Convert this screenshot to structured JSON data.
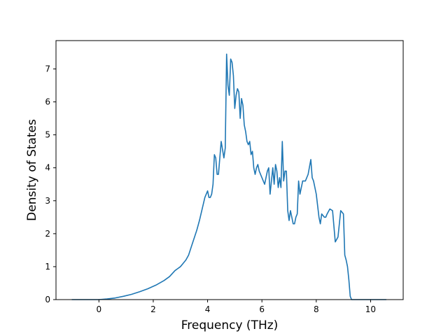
{
  "chart_data": {
    "type": "line",
    "title": "",
    "xlabel": "Frequency (THz)",
    "ylabel": "Density of States",
    "xlim": [
      -1.58,
      11.2
    ],
    "ylim": [
      0,
      7.86
    ],
    "xticks": [
      0,
      2,
      4,
      6,
      8,
      10
    ],
    "yticks": [
      0,
      1,
      2,
      3,
      4,
      5,
      6,
      7
    ],
    "grid": false,
    "legend": "none",
    "series": [
      {
        "color": "#1f77b4",
        "x": [
          -1.0,
          -0.5,
          0.0,
          0.3,
          0.6,
          0.9,
          1.2,
          1.5,
          1.8,
          2.1,
          2.4,
          2.6,
          2.8,
          3.0,
          3.1,
          3.2,
          3.3,
          3.4,
          3.5,
          3.6,
          3.7,
          3.8,
          3.9,
          4.0,
          4.05,
          4.1,
          4.15,
          4.2,
          4.25,
          4.3,
          4.35,
          4.4,
          4.5,
          4.6,
          4.65,
          4.7,
          4.75,
          4.8,
          4.85,
          4.9,
          4.95,
          5.0,
          5.05,
          5.1,
          5.15,
          5.2,
          5.25,
          5.3,
          5.35,
          5.4,
          5.45,
          5.5,
          5.55,
          5.6,
          5.65,
          5.7,
          5.75,
          5.8,
          5.85,
          5.9,
          6.0,
          6.05,
          6.1,
          6.15,
          6.2,
          6.25,
          6.3,
          6.4,
          6.45,
          6.5,
          6.55,
          6.6,
          6.65,
          6.7,
          6.75,
          6.8,
          6.85,
          6.9,
          6.95,
          7.0,
          7.05,
          7.1,
          7.15,
          7.2,
          7.25,
          7.3,
          7.35,
          7.4,
          7.5,
          7.6,
          7.7,
          7.8,
          7.85,
          7.9,
          8.0,
          8.1,
          8.15,
          8.2,
          8.25,
          8.3,
          8.35,
          8.4,
          8.5,
          8.6,
          8.7,
          8.8,
          8.9,
          9.0,
          9.05,
          9.1,
          9.15,
          9.2,
          9.25,
          9.3,
          9.35,
          9.4,
          9.45,
          9.5,
          9.55,
          9.6,
          9.7,
          9.8,
          10.0,
          10.2,
          10.4,
          10.58
        ],
        "y": [
          0.0,
          0.0,
          0.0,
          0.02,
          0.05,
          0.1,
          0.16,
          0.24,
          0.33,
          0.44,
          0.58,
          0.7,
          0.88,
          1.0,
          1.1,
          1.2,
          1.35,
          1.6,
          1.85,
          2.1,
          2.4,
          2.75,
          3.1,
          3.3,
          3.1,
          3.1,
          3.2,
          3.5,
          4.4,
          4.3,
          3.8,
          3.8,
          4.8,
          4.3,
          4.6,
          7.45,
          6.5,
          6.2,
          7.3,
          7.2,
          6.8,
          5.8,
          6.2,
          6.4,
          6.3,
          5.5,
          6.1,
          5.9,
          5.3,
          5.1,
          4.8,
          4.7,
          4.8,
          4.4,
          4.5,
          4.0,
          3.8,
          4.0,
          4.1,
          3.9,
          3.7,
          3.6,
          3.5,
          3.7,
          3.9,
          4.0,
          3.2,
          4.0,
          3.5,
          4.1,
          3.9,
          3.4,
          3.7,
          3.4,
          4.8,
          3.6,
          3.9,
          3.9,
          2.7,
          2.4,
          2.7,
          2.5,
          2.3,
          2.3,
          2.5,
          2.6,
          3.6,
          3.2,
          3.6,
          3.6,
          3.8,
          4.25,
          3.7,
          3.6,
          3.2,
          2.5,
          2.3,
          2.6,
          2.55,
          2.5,
          2.5,
          2.6,
          2.75,
          2.7,
          1.75,
          1.9,
          2.7,
          2.6,
          1.35,
          1.2,
          1.0,
          0.6,
          0.1,
          0.0,
          0.0,
          0.0,
          0.0,
          0.0,
          0.0,
          0.0,
          0.0,
          0.0,
          0.0,
          0.0,
          0.0,
          0.0
        ]
      }
    ]
  }
}
